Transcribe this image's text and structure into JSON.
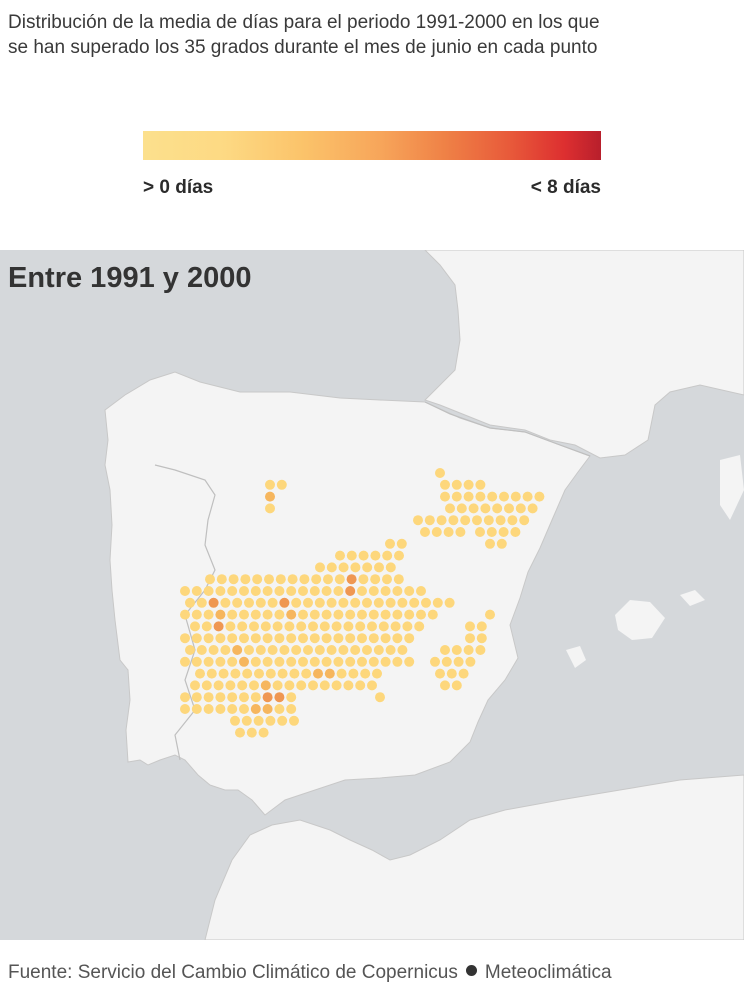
{
  "title": "Distribución de la media de días para el periodo 1991-2000 en los que se han superado los 35 grados durante el mes de junio en cada punto",
  "legend": {
    "min_label": "> 0 días",
    "max_label": "< 8 días",
    "colors": [
      "#fce08d",
      "#fdd983",
      "#fbc36a",
      "#f7a55a",
      "#ef8146",
      "#e85a3a",
      "#dd2f30",
      "#b81f2c"
    ]
  },
  "map": {
    "title": "Entre 1991 y 2000",
    "colors": {
      "sea": "#d5d8db",
      "land": "#f4f4f4",
      "border": "#bdbdbd",
      "dot_low": "#fdd77c",
      "dot_mid": "#f6b65e",
      "dot_high": "#ef9752"
    }
  },
  "source": {
    "text": "Fuente: Servicio del Cambio Climático de Copernicus",
    "brand": "Meteoclimática"
  }
}
